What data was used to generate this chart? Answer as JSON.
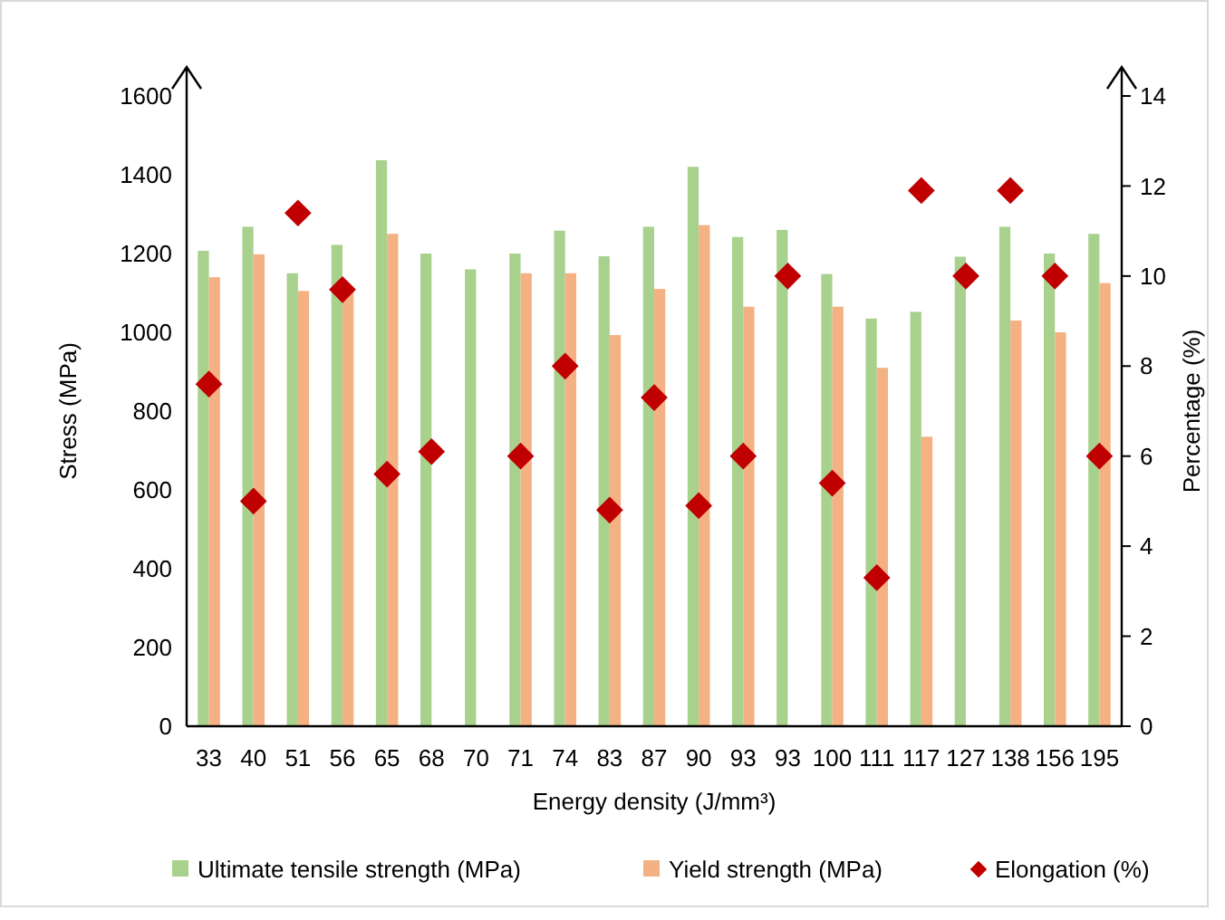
{
  "chart_data": {
    "type": "bar",
    "xlabel": "Energy density (J/mm³)",
    "ylabel": "Stress (MPa)",
    "y2label": "Percentage (%)",
    "categories": [
      "33",
      "40",
      "51",
      "56",
      "65",
      "68",
      "70",
      "71",
      "74",
      "83",
      "87",
      "90",
      "93",
      "93",
      "100",
      "111",
      "117",
      "127",
      "138",
      "156",
      "195"
    ],
    "series": [
      {
        "name": "Ultimate tensile strength (MPa)",
        "color": "#a9d18e",
        "values": [
          1207,
          1268,
          1150,
          1222,
          1437,
          1200,
          1160,
          1200,
          1258,
          1193,
          1268,
          1420,
          1242,
          1260,
          1148,
          1035,
          1052,
          1192,
          1268,
          1200,
          1250
        ]
      },
      {
        "name": "Yield strength (MPa)",
        "color": "#f4b183",
        "values": [
          1140,
          1198,
          1105,
          1110,
          1250,
          null,
          null,
          1150,
          1150,
          993,
          1110,
          1272,
          1065,
          null,
          1065,
          910,
          735,
          null,
          1030,
          1000,
          1125
        ]
      },
      {
        "name": "Elongation (%)",
        "type": "scatter",
        "axis": "y2",
        "marker": "diamond",
        "color": "#c00000",
        "values": [
          7.6,
          5.0,
          11.4,
          9.7,
          5.6,
          6.1,
          null,
          6.0,
          8.0,
          4.8,
          7.3,
          4.9,
          6.0,
          10.0,
          5.4,
          3.3,
          11.9,
          10.0,
          11.9,
          10.0,
          6.0
        ]
      }
    ],
    "ylim": [
      0,
      1600
    ],
    "yticks": [
      0,
      200,
      400,
      600,
      800,
      1000,
      1200,
      1400,
      1600
    ],
    "y2lim": [
      0,
      14
    ],
    "y2ticks": [
      0,
      2,
      4,
      6,
      8,
      10,
      12,
      14
    ],
    "grid": false,
    "legend": "bottom"
  }
}
